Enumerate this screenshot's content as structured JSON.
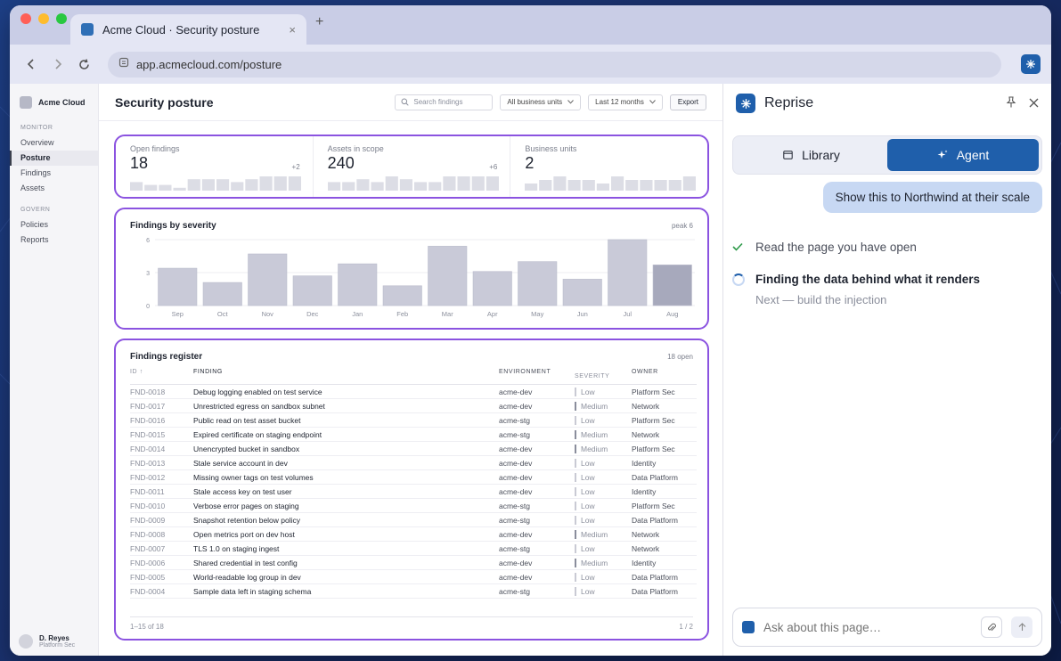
{
  "browser": {
    "tab_title": "Acme Cloud · Security posture",
    "tab_close": "×",
    "new_tab": "+",
    "url": "app.acmecloud.com/posture"
  },
  "sidebar": {
    "brand": "Acme Cloud",
    "sections": [
      {
        "label": "MONITOR",
        "items": [
          "Overview",
          "Posture",
          "Findings",
          "Assets"
        ]
      },
      {
        "label": "GOVERN",
        "items": [
          "Policies",
          "Reports"
        ]
      }
    ],
    "active_item": "Posture",
    "user": {
      "name": "D. Reyes",
      "role": "Platform Sec"
    }
  },
  "header": {
    "title": "Security posture",
    "search_placeholder": "Search findings",
    "filter_units": "All business units",
    "filter_range": "Last 12 months",
    "export_label": "Export"
  },
  "kpis": [
    {
      "label": "Open findings",
      "value": "18",
      "delta": "+2",
      "spark": [
        3,
        2,
        2,
        1,
        4,
        4,
        4,
        3,
        4,
        5,
        5,
        5
      ]
    },
    {
      "label": "Assets in scope",
      "value": "240",
      "delta": "+6",
      "spark": [
        3,
        3,
        4,
        3,
        5,
        4,
        3,
        3,
        5,
        5,
        5,
        5
      ]
    },
    {
      "label": "Business units",
      "value": "2",
      "delta": "",
      "spark": [
        2,
        3,
        4,
        3,
        3,
        2,
        4,
        3,
        3,
        3,
        3,
        4
      ]
    }
  ],
  "chart_data": {
    "type": "bar",
    "title": "Findings by severity",
    "note": "peak 6",
    "categories": [
      "Sep",
      "Oct",
      "Nov",
      "Dec",
      "Jan",
      "Feb",
      "Mar",
      "Apr",
      "May",
      "Jun",
      "Jul",
      "Aug"
    ],
    "values": [
      3.4,
      2.1,
      4.7,
      2.7,
      3.8,
      1.8,
      5.4,
      3.1,
      4.0,
      2.4,
      6.0,
      3.7
    ],
    "highlight_index": 11,
    "yticks": [
      0,
      3,
      6
    ],
    "ylim": [
      0,
      6
    ],
    "grid": true,
    "colors": {
      "bar": "#c9cad8",
      "bar_highlight": "#a7a9bc"
    }
  },
  "register": {
    "title": "Findings register",
    "count_label": "18 open",
    "columns": [
      "ID ↑",
      "FINDING",
      "ENVIRONMENT",
      "SEVERITY",
      "OWNER"
    ],
    "rows": [
      {
        "id": "FND-0018",
        "finding": "Debug logging enabled on test service",
        "env": "acme-dev",
        "sev": "Low",
        "owner": "Platform Sec"
      },
      {
        "id": "FND-0017",
        "finding": "Unrestricted egress on sandbox subnet",
        "env": "acme-dev",
        "sev": "Medium",
        "owner": "Network"
      },
      {
        "id": "FND-0016",
        "finding": "Public read on test asset bucket",
        "env": "acme-stg",
        "sev": "Low",
        "owner": "Platform Sec"
      },
      {
        "id": "FND-0015",
        "finding": "Expired certificate on staging endpoint",
        "env": "acme-stg",
        "sev": "Medium",
        "owner": "Network"
      },
      {
        "id": "FND-0014",
        "finding": "Unencrypted bucket in sandbox",
        "env": "acme-dev",
        "sev": "Medium",
        "owner": "Platform Sec"
      },
      {
        "id": "FND-0013",
        "finding": "Stale service account in dev",
        "env": "acme-dev",
        "sev": "Low",
        "owner": "Identity"
      },
      {
        "id": "FND-0012",
        "finding": "Missing owner tags on test volumes",
        "env": "acme-dev",
        "sev": "Low",
        "owner": "Data Platform"
      },
      {
        "id": "FND-0011",
        "finding": "Stale access key on test user",
        "env": "acme-dev",
        "sev": "Low",
        "owner": "Identity"
      },
      {
        "id": "FND-0010",
        "finding": "Verbose error pages on staging",
        "env": "acme-stg",
        "sev": "Low",
        "owner": "Platform Sec"
      },
      {
        "id": "FND-0009",
        "finding": "Snapshot retention below policy",
        "env": "acme-stg",
        "sev": "Low",
        "owner": "Data Platform"
      },
      {
        "id": "FND-0008",
        "finding": "Open metrics port on dev host",
        "env": "acme-dev",
        "sev": "Medium",
        "owner": "Network"
      },
      {
        "id": "FND-0007",
        "finding": "TLS 1.0 on staging ingest",
        "env": "acme-stg",
        "sev": "Low",
        "owner": "Network"
      },
      {
        "id": "FND-0006",
        "finding": "Shared credential in test config",
        "env": "acme-dev",
        "sev": "Medium",
        "owner": "Identity"
      },
      {
        "id": "FND-0005",
        "finding": "World-readable log group in dev",
        "env": "acme-dev",
        "sev": "Low",
        "owner": "Data Platform"
      },
      {
        "id": "FND-0004",
        "finding": "Sample data left in staging schema",
        "env": "acme-stg",
        "sev": "Low",
        "owner": "Data Platform"
      }
    ],
    "footer_range": "1–15 of 18",
    "footer_page": "1 / 2"
  },
  "panel": {
    "title": "Reprise",
    "tab_library": "Library",
    "tab_agent": "Agent",
    "user_message": "Show this to Northwind at their scale",
    "step_done": "Read the page you have open",
    "step_active": "Finding the data behind what it renders",
    "step_next": "Next — build the injection",
    "composer_placeholder": "Ask about this page…"
  }
}
